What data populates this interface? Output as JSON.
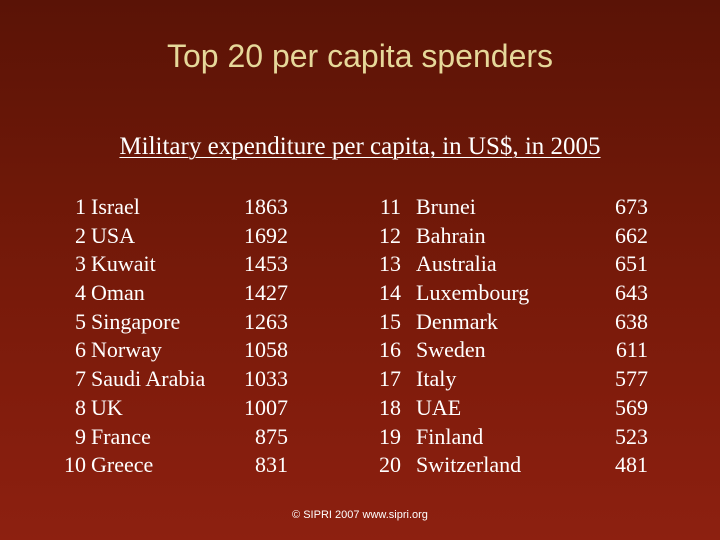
{
  "slide": {
    "title": "Top 20 per capita spenders",
    "subtitle": "Military expenditure per capita, in US$, in 2005",
    "footer": "©  SIPRI 2007  www.sipri.org"
  },
  "rankings": [
    {
      "rank": "1",
      "country": "Israel",
      "value": "1863"
    },
    {
      "rank": "2",
      "country": "USA",
      "value": "1692"
    },
    {
      "rank": "3",
      "country": "Kuwait",
      "value": "1453"
    },
    {
      "rank": "4",
      "country": "Oman",
      "value": "1427"
    },
    {
      "rank": "5",
      "country": "Singapore",
      "value": "1263"
    },
    {
      "rank": "6",
      "country": "Norway",
      "value": "1058"
    },
    {
      "rank": "7",
      "country": "Saudi Arabia",
      "value": "1033"
    },
    {
      "rank": "8",
      "country": "UK",
      "value": "1007"
    },
    {
      "rank": "9",
      "country": "France",
      "value": "875"
    },
    {
      "rank": "10",
      "country": "Greece",
      "value": "831"
    },
    {
      "rank": "11",
      "country": "Brunei",
      "value": "673"
    },
    {
      "rank": "12",
      "country": "Bahrain",
      "value": "662"
    },
    {
      "rank": "13",
      "country": "Australia",
      "value": "651"
    },
    {
      "rank": "14",
      "country": "Luxembourg",
      "value": "643"
    },
    {
      "rank": "15",
      "country": "Denmark",
      "value": "638"
    },
    {
      "rank": "16",
      "country": "Sweden",
      "value": "611"
    },
    {
      "rank": "17",
      "country": "Italy",
      "value": "577"
    },
    {
      "rank": "18",
      "country": "UAE",
      "value": "569"
    },
    {
      "rank": "19",
      "country": "Finland",
      "value": "523"
    },
    {
      "rank": "20",
      "country": "Switzerland",
      "value": "481"
    }
  ]
}
